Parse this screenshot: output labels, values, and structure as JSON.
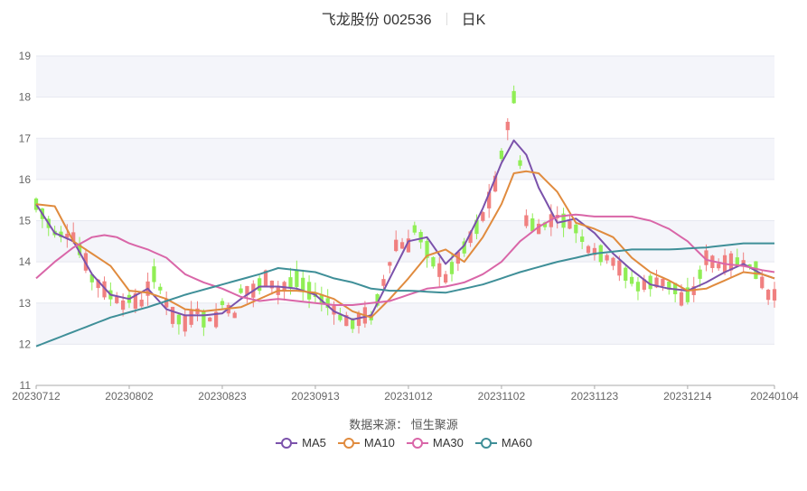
{
  "header": {
    "stock": "飞龙股份 002536",
    "period": "日K"
  },
  "footer": {
    "source": "数据来源：  恒生聚源"
  },
  "colors": {
    "up": "#f08080",
    "down": "#90ee55",
    "grid_band": "#f4f5fa",
    "axis": "#999999"
  },
  "chart_data": {
    "type": "candlestick",
    "ylim": [
      11,
      19
    ],
    "yticks": [
      11,
      12,
      13,
      14,
      15,
      16,
      17,
      18,
      19
    ],
    "x_tick_labels": [
      "20230712",
      "20230802",
      "20230823",
      "20230913",
      "20231012",
      "20231102",
      "20231123",
      "20231214",
      "20240104"
    ],
    "n_days": 120,
    "x_tick_day_index": [
      0,
      15,
      30,
      45,
      60,
      75,
      90,
      105,
      119
    ],
    "ma_anchors": {
      "MA5": [
        [
          0,
          15.4
        ],
        [
          3,
          14.7
        ],
        [
          6,
          14.5
        ],
        [
          9,
          13.7
        ],
        [
          12,
          13.2
        ],
        [
          15,
          13.1
        ],
        [
          18,
          13.35
        ],
        [
          21,
          12.85
        ],
        [
          24,
          12.7
        ],
        [
          27,
          12.7
        ],
        [
          30,
          12.75
        ],
        [
          33,
          13.1
        ],
        [
          36,
          13.4
        ],
        [
          39,
          13.4
        ],
        [
          42,
          13.35
        ],
        [
          45,
          13.2
        ],
        [
          48,
          12.8
        ],
        [
          51,
          12.6
        ],
        [
          54,
          12.7
        ],
        [
          57,
          13.6
        ],
        [
          60,
          14.5
        ],
        [
          63,
          14.6
        ],
        [
          66,
          13.95
        ],
        [
          69,
          14.4
        ],
        [
          72,
          15.3
        ],
        [
          75,
          16.4
        ],
        [
          77,
          16.95
        ],
        [
          79,
          16.6
        ],
        [
          81,
          15.8
        ],
        [
          84,
          14.95
        ],
        [
          87,
          15.05
        ],
        [
          90,
          14.7
        ],
        [
          93,
          14.2
        ],
        [
          96,
          13.8
        ],
        [
          99,
          13.45
        ],
        [
          102,
          13.35
        ],
        [
          105,
          13.3
        ],
        [
          108,
          13.5
        ],
        [
          111,
          13.75
        ],
        [
          114,
          13.95
        ],
        [
          117,
          13.7
        ],
        [
          119,
          13.6
        ]
      ],
      "MA10": [
        [
          0,
          15.4
        ],
        [
          3,
          15.35
        ],
        [
          6,
          14.5
        ],
        [
          9,
          14.2
        ],
        [
          12,
          13.9
        ],
        [
          15,
          13.3
        ],
        [
          18,
          13.25
        ],
        [
          21,
          13.1
        ],
        [
          24,
          12.85
        ],
        [
          27,
          12.8
        ],
        [
          30,
          12.85
        ],
        [
          33,
          12.9
        ],
        [
          36,
          13.1
        ],
        [
          39,
          13.3
        ],
        [
          42,
          13.3
        ],
        [
          45,
          13.25
        ],
        [
          48,
          13.1
        ],
        [
          51,
          12.8
        ],
        [
          54,
          12.65
        ],
        [
          57,
          13.1
        ],
        [
          60,
          13.6
        ],
        [
          63,
          14.15
        ],
        [
          66,
          14.3
        ],
        [
          69,
          14.0
        ],
        [
          72,
          14.6
        ],
        [
          75,
          15.4
        ],
        [
          77,
          16.15
        ],
        [
          79,
          16.2
        ],
        [
          81,
          16.15
        ],
        [
          84,
          15.7
        ],
        [
          87,
          14.95
        ],
        [
          90,
          14.8
        ],
        [
          93,
          14.6
        ],
        [
          96,
          14.1
        ],
        [
          99,
          13.75
        ],
        [
          102,
          13.55
        ],
        [
          105,
          13.3
        ],
        [
          108,
          13.35
        ],
        [
          111,
          13.55
        ],
        [
          114,
          13.75
        ],
        [
          117,
          13.7
        ],
        [
          119,
          13.6
        ]
      ],
      "MA30": [
        [
          0,
          13.6
        ],
        [
          3,
          14.0
        ],
        [
          6,
          14.35
        ],
        [
          9,
          14.6
        ],
        [
          11,
          14.65
        ],
        [
          13,
          14.6
        ],
        [
          15,
          14.45
        ],
        [
          18,
          14.3
        ],
        [
          21,
          14.1
        ],
        [
          24,
          13.7
        ],
        [
          27,
          13.5
        ],
        [
          30,
          13.35
        ],
        [
          33,
          13.15
        ],
        [
          36,
          13.05
        ],
        [
          39,
          13.1
        ],
        [
          42,
          13.05
        ],
        [
          45,
          13.0
        ],
        [
          48,
          12.95
        ],
        [
          51,
          12.95
        ],
        [
          54,
          13.0
        ],
        [
          57,
          13.05
        ],
        [
          60,
          13.2
        ],
        [
          63,
          13.35
        ],
        [
          66,
          13.4
        ],
        [
          69,
          13.5
        ],
        [
          72,
          13.7
        ],
        [
          75,
          14.0
        ],
        [
          78,
          14.5
        ],
        [
          81,
          14.85
        ],
        [
          84,
          15.1
        ],
        [
          87,
          15.15
        ],
        [
          90,
          15.1
        ],
        [
          93,
          15.1
        ],
        [
          96,
          15.1
        ],
        [
          99,
          15.0
        ],
        [
          102,
          14.8
        ],
        [
          105,
          14.5
        ],
        [
          108,
          14.05
        ],
        [
          111,
          13.95
        ],
        [
          114,
          13.9
        ],
        [
          117,
          13.8
        ],
        [
          119,
          13.75
        ]
      ],
      "MA60": [
        [
          0,
          11.95
        ],
        [
          6,
          12.3
        ],
        [
          12,
          12.65
        ],
        [
          18,
          12.9
        ],
        [
          24,
          13.2
        ],
        [
          30,
          13.45
        ],
        [
          36,
          13.7
        ],
        [
          39,
          13.85
        ],
        [
          42,
          13.8
        ],
        [
          45,
          13.75
        ],
        [
          48,
          13.6
        ],
        [
          51,
          13.5
        ],
        [
          54,
          13.35
        ],
        [
          57,
          13.3
        ],
        [
          60,
          13.3
        ],
        [
          66,
          13.25
        ],
        [
          72,
          13.45
        ],
        [
          78,
          13.75
        ],
        [
          84,
          14.0
        ],
        [
          90,
          14.2
        ],
        [
          96,
          14.3
        ],
        [
          102,
          14.3
        ],
        [
          108,
          14.35
        ],
        [
          114,
          14.45
        ],
        [
          119,
          14.45
        ]
      ]
    },
    "candle_anchors": [
      [
        0,
        15.4
      ],
      [
        3,
        14.7
      ],
      [
        6,
        14.6
      ],
      [
        8,
        14.0
      ],
      [
        9,
        13.6
      ],
      [
        12,
        13.2
      ],
      [
        14,
        12.95
      ],
      [
        15,
        13.1
      ],
      [
        17,
        13.0
      ],
      [
        19,
        13.7
      ],
      [
        21,
        13.0
      ],
      [
        22,
        12.7
      ],
      [
        24,
        12.5
      ],
      [
        26,
        12.8
      ],
      [
        27,
        12.6
      ],
      [
        29,
        12.6
      ],
      [
        30,
        13.0
      ],
      [
        32,
        12.7
      ],
      [
        33,
        13.3
      ],
      [
        35,
        13.3
      ],
      [
        37,
        13.6
      ],
      [
        39,
        13.3
      ],
      [
        41,
        13.5
      ],
      [
        42,
        13.6
      ],
      [
        44,
        13.3
      ],
      [
        45,
        13.2
      ],
      [
        47,
        13.0
      ],
      [
        49,
        12.65
      ],
      [
        51,
        12.5
      ],
      [
        53,
        12.7
      ],
      [
        54,
        12.65
      ],
      [
        56,
        13.5
      ],
      [
        58,
        14.4
      ],
      [
        60,
        14.4
      ],
      [
        61,
        14.8
      ],
      [
        62,
        14.6
      ],
      [
        64,
        14.0
      ],
      [
        66,
        13.6
      ],
      [
        68,
        14.1
      ],
      [
        70,
        14.6
      ],
      [
        72,
        15.1
      ],
      [
        74,
        15.9
      ],
      [
        75,
        16.6
      ],
      [
        76,
        17.3
      ],
      [
        77,
        18.0
      ],
      [
        78,
        16.4
      ],
      [
        79,
        15.0
      ],
      [
        81,
        14.8
      ],
      [
        84,
        15.1
      ],
      [
        86,
        14.9
      ],
      [
        87,
        14.8
      ],
      [
        89,
        14.3
      ],
      [
        91,
        14.2
      ],
      [
        93,
        14.0
      ],
      [
        95,
        13.7
      ],
      [
        97,
        13.4
      ],
      [
        99,
        13.5
      ],
      [
        101,
        13.5
      ],
      [
        103,
        13.35
      ],
      [
        104,
        13.1
      ],
      [
        106,
        13.3
      ],
      [
        108,
        14.1
      ],
      [
        110,
        13.9
      ],
      [
        112,
        14.0
      ],
      [
        114,
        14.0
      ],
      [
        116,
        13.8
      ],
      [
        118,
        13.2
      ],
      [
        119,
        13.2
      ]
    ],
    "series": [
      {
        "name": "MA5",
        "color": "#7b52ab"
      },
      {
        "name": "MA10",
        "color": "#e08b3e"
      },
      {
        "name": "MA30",
        "color": "#d966a8"
      },
      {
        "name": "MA60",
        "color": "#3f8f98"
      }
    ]
  }
}
